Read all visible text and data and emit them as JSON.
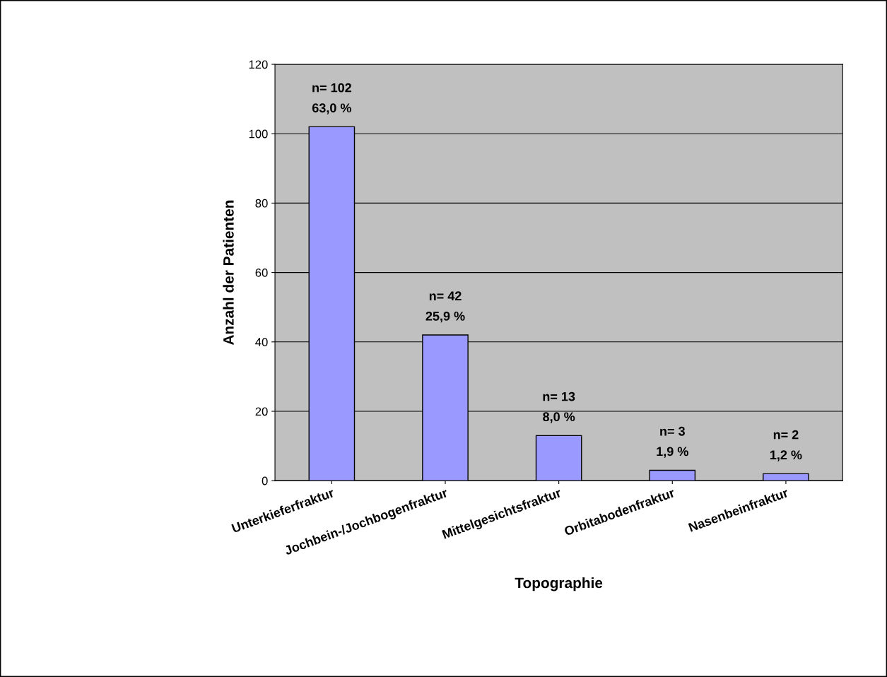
{
  "chart_data": {
    "type": "bar",
    "xlabel": "Topographie",
    "ylabel": "Anzahl der Patienten",
    "categories": [
      "Unterkieferfraktur",
      "Jochbein-/Jochbogenfraktur",
      "Mittelgesichtsfraktur",
      "Orbitabodenfraktur",
      "Nasenbeinfraktur"
    ],
    "values": [
      102,
      42,
      13,
      3,
      2
    ],
    "value_labels": [
      "n= 102\n63,0 %",
      "n= 42\n25,9 %",
      "n= 13\n8,0 %",
      "n= 3\n1,9 %",
      "n= 2\n1,2 %"
    ],
    "color": "#9999ff",
    "ylim": [
      0,
      120
    ],
    "yticks": [
      0,
      20,
      40,
      60,
      80,
      100,
      120
    ],
    "grid": "y"
  }
}
